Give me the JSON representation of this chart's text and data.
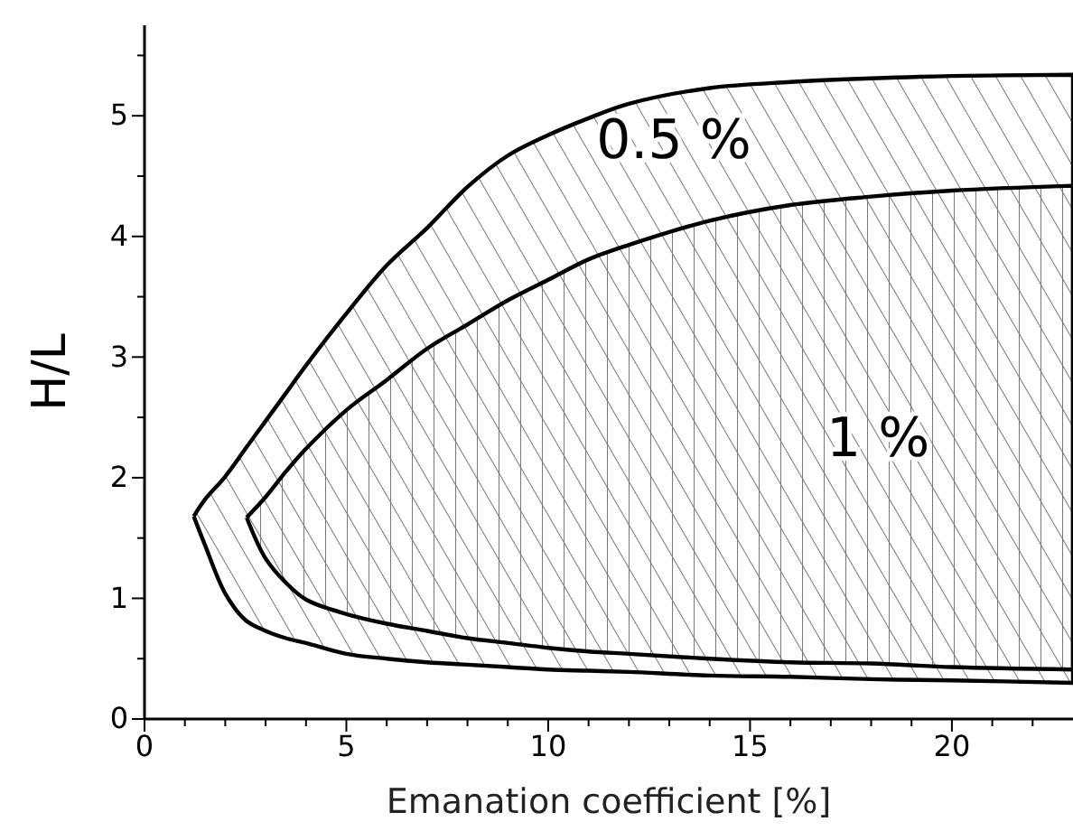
{
  "chart_data": {
    "type": "area",
    "xlabel": "Emanation coefficient [%]",
    "ylabel": "H/L",
    "xlim": [
      0,
      23
    ],
    "ylim": [
      0,
      5.75
    ],
    "xticks": [
      0,
      {
        "value": 1,
        "label": null
      },
      {
        "value": 2,
        "label": null
      },
      {
        "value": 3,
        "label": null
      },
      {
        "value": 4,
        "label": null
      },
      5,
      {
        "value": 6,
        "label": null
      },
      {
        "value": 7,
        "label": null
      },
      {
        "value": 8,
        "label": null
      },
      {
        "value": 9,
        "label": null
      },
      10,
      {
        "value": 11,
        "label": null
      },
      {
        "value": 12,
        "label": null
      },
      {
        "value": 13,
        "label": null
      },
      {
        "value": 14,
        "label": null
      },
      15,
      {
        "value": 16,
        "label": null
      },
      {
        "value": 17,
        "label": null
      },
      {
        "value": 18,
        "label": null
      },
      {
        "value": 19,
        "label": null
      },
      20,
      {
        "value": 21,
        "label": null
      },
      {
        "value": 22,
        "label": null
      }
    ],
    "yticks": [
      0,
      {
        "value": 0.5,
        "label": null
      },
      1,
      {
        "value": 1.5,
        "label": null
      },
      2,
      {
        "value": 2.5,
        "label": null
      },
      3,
      {
        "value": 3.5,
        "label": null
      },
      4,
      {
        "value": 4.5,
        "label": null
      },
      5,
      {
        "value": 5.5,
        "label": null
      }
    ],
    "series": [
      {
        "name": "0.5 %",
        "color": "#000000",
        "x": [
          1.22,
          1.5,
          2,
          2.5,
          3,
          3.5,
          4,
          5,
          6,
          7,
          8,
          9,
          10,
          11,
          12,
          14,
          16,
          18,
          20,
          23,
          23,
          20,
          18,
          16,
          14,
          12,
          11,
          10,
          9,
          8,
          7,
          6,
          5,
          4,
          3.5,
          3,
          2.5,
          2,
          1.5,
          1.22
        ],
        "values": [
          1.68,
          1.82,
          2.01,
          2.24,
          2.47,
          2.7,
          2.93,
          3.36,
          3.76,
          4.07,
          4.41,
          4.67,
          4.84,
          4.98,
          5.1,
          5.23,
          5.28,
          5.31,
          5.33,
          5.34,
          0.3,
          0.32,
          0.33,
          0.35,
          0.36,
          0.39,
          0.4,
          0.41,
          0.43,
          0.45,
          0.47,
          0.5,
          0.54,
          0.63,
          0.67,
          0.73,
          0.82,
          1.04,
          1.44,
          1.68
        ]
      },
      {
        "name": "1 %",
        "color": "#000000",
        "x": [
          2.53,
          3,
          3.5,
          4,
          5,
          6,
          7,
          8,
          9,
          10,
          11,
          12,
          14,
          16,
          18,
          20,
          23,
          23,
          20,
          18,
          16,
          14,
          12,
          11,
          10,
          9,
          8,
          7,
          6,
          5,
          4,
          3.5,
          3,
          2.53
        ],
        "values": [
          1.67,
          1.84,
          2.05,
          2.24,
          2.56,
          2.81,
          3.07,
          3.27,
          3.47,
          3.64,
          3.81,
          3.93,
          4.13,
          4.26,
          4.33,
          4.38,
          4.42,
          0.41,
          0.43,
          0.46,
          0.47,
          0.5,
          0.54,
          0.56,
          0.59,
          0.63,
          0.67,
          0.73,
          0.79,
          0.87,
          0.99,
          1.13,
          1.33,
          1.67
        ]
      }
    ]
  }
}
